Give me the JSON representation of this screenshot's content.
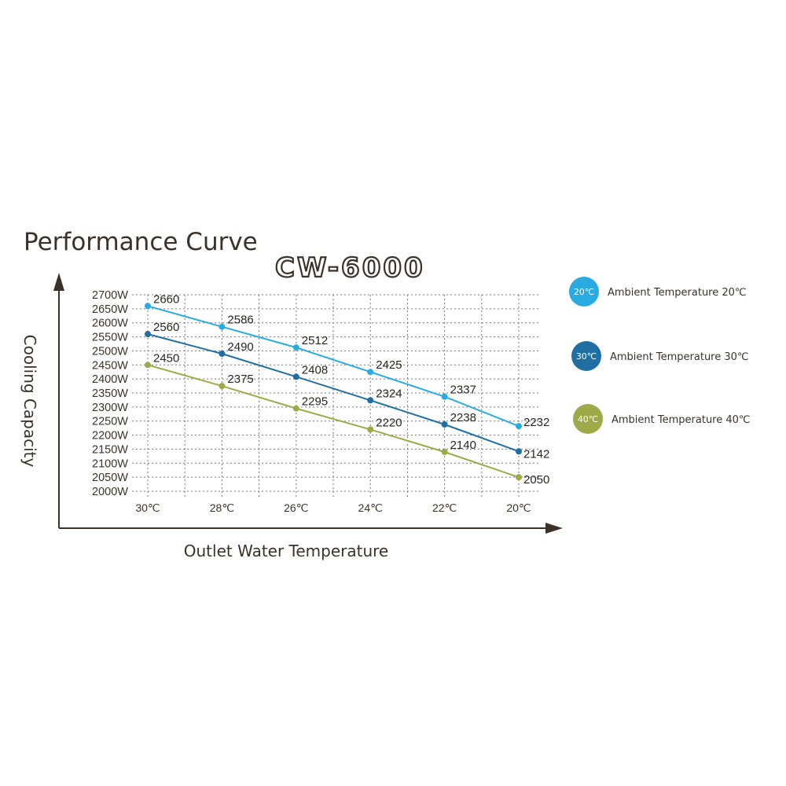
{
  "chart_data": {
    "type": "line",
    "title": "Performance Curve",
    "subtitle": "CW-6000",
    "xlabel": "Outlet Water Temperature",
    "ylabel": "Cooling Capacity",
    "categories": [
      "30℃",
      "28℃",
      "26℃",
      "24℃",
      "22℃",
      "20℃"
    ],
    "yticks": [
      "2700W",
      "2650W",
      "2600W",
      "2550W",
      "2500W",
      "2450W",
      "2400W",
      "2350W",
      "2300W",
      "2250W",
      "2200W",
      "2150W",
      "2100W",
      "2050W",
      "2000W"
    ],
    "ylim": [
      2000,
      2700
    ],
    "grid": true,
    "legend_position": "right",
    "series": [
      {
        "name": "Ambient Temperature 20℃",
        "badge": "20℃",
        "color": "#29ABE2",
        "values": [
          2660,
          2586,
          2512,
          2425,
          2337,
          2232
        ]
      },
      {
        "name": "Ambient Temperature 30℃",
        "badge": "30℃",
        "color": "#1F6FA5",
        "values": [
          2560,
          2490,
          2408,
          2324,
          2238,
          2142
        ]
      },
      {
        "name": "Ambient Temperature 40℃",
        "badge": "40℃",
        "color": "#9EAA47",
        "values": [
          2450,
          2375,
          2295,
          2220,
          2140,
          2050
        ]
      }
    ]
  }
}
